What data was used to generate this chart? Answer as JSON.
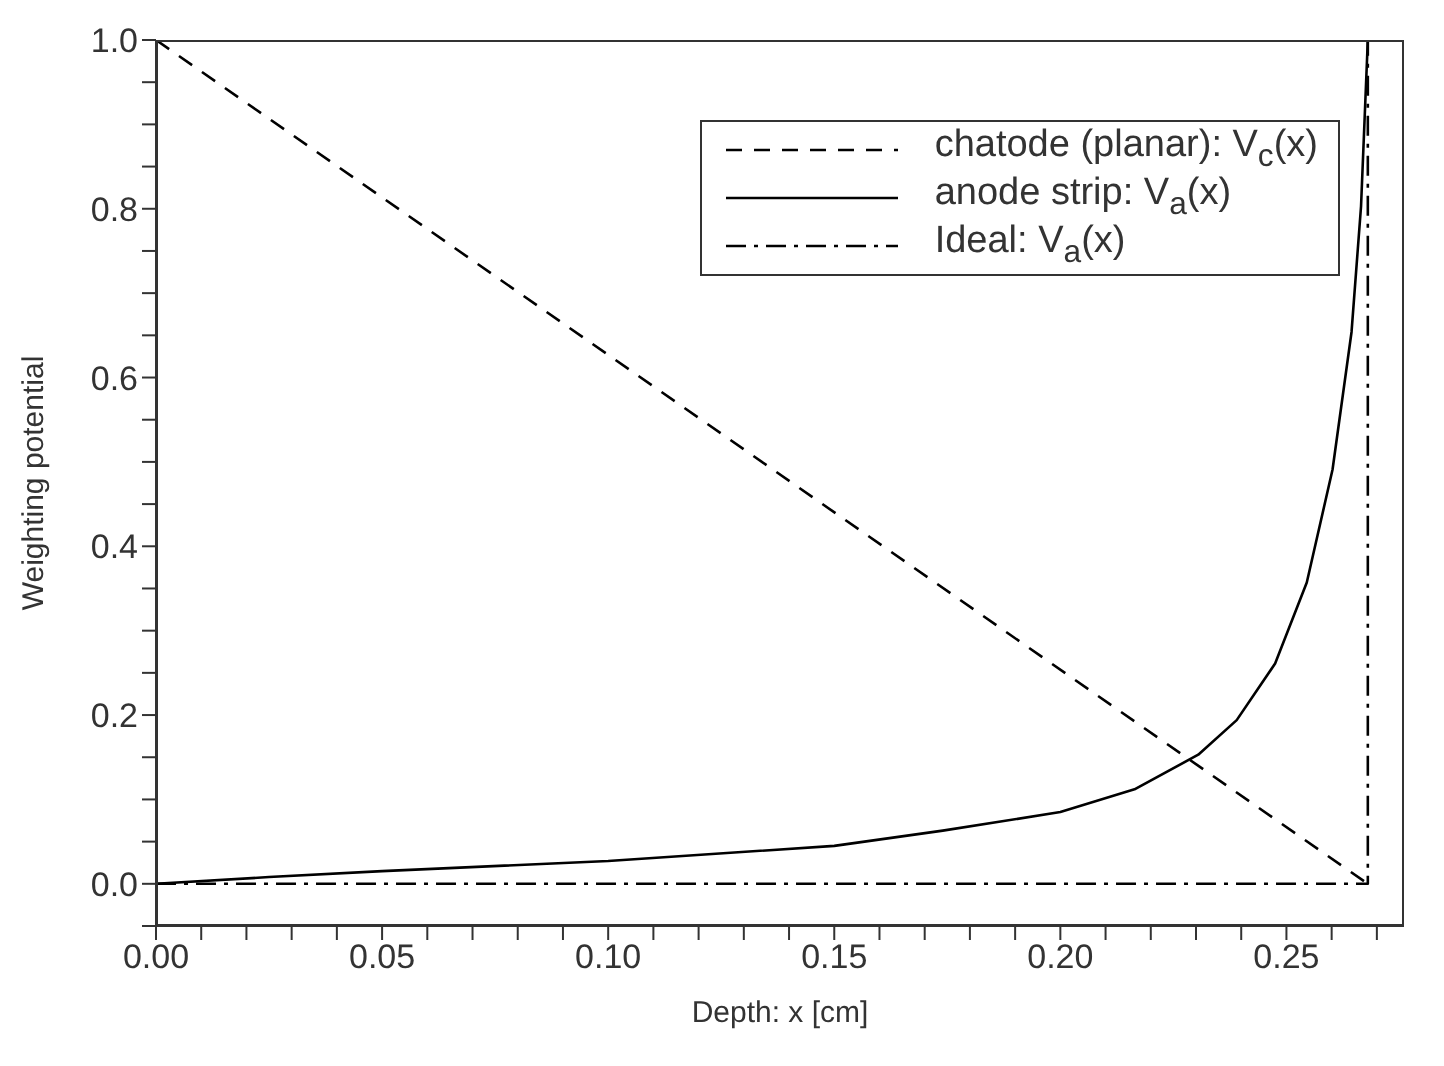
{
  "chart_data": {
    "type": "line",
    "xlabel": "Depth: x [cm]",
    "ylabel": "Weighting potential",
    "xlim": [
      0,
      0.276
    ],
    "ylim": [
      -0.05,
      1.0
    ],
    "xticks": [
      {
        "value": 0,
        "label": "0.00"
      },
      {
        "value": 0.01,
        "label": null
      },
      {
        "value": 0.02,
        "label": null
      },
      {
        "value": 0.03,
        "label": null
      },
      {
        "value": 0.04,
        "label": null
      },
      {
        "value": 0.05,
        "label": "0.05"
      },
      {
        "value": 0.06,
        "label": null
      },
      {
        "value": 0.07,
        "label": null
      },
      {
        "value": 0.08,
        "label": null
      },
      {
        "value": 0.09,
        "label": null
      },
      {
        "value": 0.1,
        "label": "0.10"
      },
      {
        "value": 0.11,
        "label": null
      },
      {
        "value": 0.12,
        "label": null
      },
      {
        "value": 0.13,
        "label": null
      },
      {
        "value": 0.14,
        "label": null
      },
      {
        "value": 0.15,
        "label": "0.15"
      },
      {
        "value": 0.16,
        "label": null
      },
      {
        "value": 0.17,
        "label": null
      },
      {
        "value": 0.18,
        "label": null
      },
      {
        "value": 0.19,
        "label": null
      },
      {
        "value": 0.2,
        "label": "0.20"
      },
      {
        "value": 0.21,
        "label": null
      },
      {
        "value": 0.22,
        "label": null
      },
      {
        "value": 0.23,
        "label": null
      },
      {
        "value": 0.24,
        "label": null
      },
      {
        "value": 0.25,
        "label": "0.25"
      },
      {
        "value": 0.26,
        "label": null
      },
      {
        "value": 0.27,
        "label": null
      }
    ],
    "yticks": [
      {
        "value": -0.05,
        "label": null
      },
      {
        "value": 0,
        "label": "0.0"
      },
      {
        "value": 0.05,
        "label": null
      },
      {
        "value": 0.1,
        "label": null
      },
      {
        "value": 0.15,
        "label": null
      },
      {
        "value": 0.2,
        "label": "0.2"
      },
      {
        "value": 0.25,
        "label": null
      },
      {
        "value": 0.3,
        "label": null
      },
      {
        "value": 0.35,
        "label": null
      },
      {
        "value": 0.4,
        "label": "0.4"
      },
      {
        "value": 0.45,
        "label": null
      },
      {
        "value": 0.5,
        "label": null
      },
      {
        "value": 0.55,
        "label": null
      },
      {
        "value": 0.6,
        "label": "0.6"
      },
      {
        "value": 0.65,
        "label": null
      },
      {
        "value": 0.7,
        "label": null
      },
      {
        "value": 0.75,
        "label": null
      },
      {
        "value": 0.8,
        "label": "0.8"
      },
      {
        "value": 0.85,
        "label": null
      },
      {
        "value": 0.9,
        "label": null
      },
      {
        "value": 0.95,
        "label": null
      },
      {
        "value": 1.0,
        "label": "1.0"
      }
    ],
    "legend": "top right",
    "marker": "none",
    "series": [
      {
        "name": "chatode (planar): V$_{c}$(x)",
        "color": "#000000",
        "line_style": "dashed",
        "x": [
          0,
          0.268
        ],
        "values": [
          1.0,
          0.0
        ]
      },
      {
        "name": "anode strip: V$_{a}$(x)",
        "color": "#000000",
        "line_style": "solid",
        "x": [
          0,
          0.025,
          0.05,
          0.1,
          0.15,
          0.174,
          0.2,
          0.2164,
          0.2305,
          0.239,
          0.2475,
          0.2545,
          0.2602,
          0.2644,
          0.2665,
          0.268
        ],
        "values": [
          0,
          0.008,
          0.015,
          0.027,
          0.045,
          0.063,
          0.085,
          0.112,
          0.153,
          0.194,
          0.261,
          0.357,
          0.491,
          0.654,
          0.803,
          1.0
        ]
      },
      {
        "name": "Ideal: V$_{a}$(x)",
        "color": "#000000",
        "line_style": "dashdot",
        "x": [
          0,
          0.268,
          0.268
        ],
        "values": [
          0,
          0,
          1.0
        ]
      }
    ]
  }
}
